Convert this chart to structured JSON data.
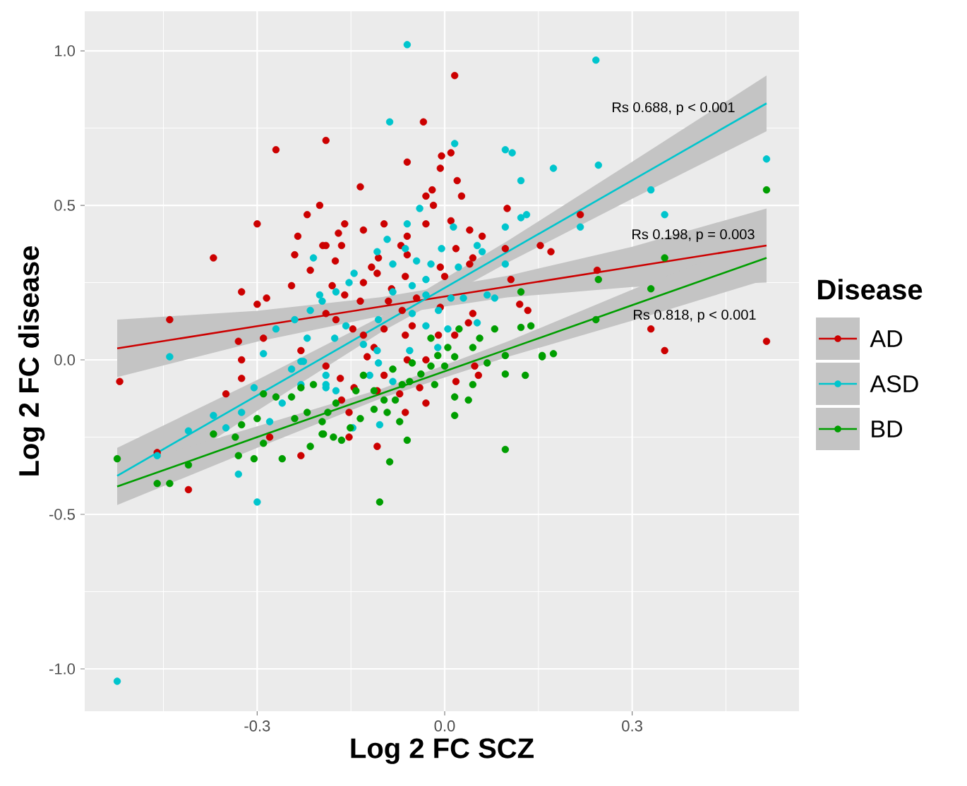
{
  "chart_data": {
    "type": "scatter",
    "xlabel": "Log 2 FC SCZ",
    "ylabel": "Log 2 FC disease",
    "legend_title": "Disease",
    "legend": "right",
    "grid": true,
    "xlim": [
      -0.576,
      0.567
    ],
    "ylim": [
      -1.137,
      1.128
    ],
    "xticks": [
      {
        "value": -0.3,
        "label": "-0.3"
      },
      {
        "value": 0,
        "label": "0.0"
      },
      {
        "value": 0.3,
        "label": "0.3"
      }
    ],
    "yticks": [
      {
        "value": -1,
        "label": "-1.0"
      },
      {
        "value": -0.5,
        "label": "-0.5"
      },
      {
        "value": 0,
        "label": "0.0"
      },
      {
        "value": 0.5,
        "label": "0.5"
      },
      {
        "value": 1,
        "label": "1.0"
      }
    ],
    "annotations": [
      "Rs 0.688, p < 0.001",
      "Rs 0.198, p = 0.003",
      "Rs 0.818, p < 0.001"
    ],
    "series": [
      {
        "name": "AD",
        "color": "#cc0000",
        "marker": "circle",
        "x": [
          -0.27,
          -0.19,
          -0.2,
          -0.22,
          -0.3,
          -0.235,
          -0.37,
          -0.24,
          -0.215,
          -0.245,
          -0.325,
          -0.285,
          -0.44,
          -0.3,
          -0.33,
          -0.29,
          -0.325,
          -0.23,
          -0.195,
          -0.52,
          -0.325,
          -0.35,
          -0.41,
          -0.23,
          -0.28,
          -0.46,
          0.016,
          -0.034,
          -0.06,
          -0.005,
          0.01,
          -0.007,
          0.02,
          -0.135,
          0.027,
          -0.02,
          -0.03,
          -0.018,
          -0.03,
          0.01,
          0.04,
          0.1,
          -0.16,
          -0.13,
          -0.097,
          -0.17,
          -0.19,
          -0.165,
          -0.06,
          -0.07,
          -0.175,
          -0.106,
          -0.06,
          0.018,
          -0.007,
          0.045,
          0.097,
          0.153,
          0.17,
          -0.117,
          -0.13,
          -0.108,
          -0.18,
          -0.16,
          -0.085,
          -0.063,
          0.0,
          0.04,
          0.106,
          0.12,
          0.133,
          -0.045,
          -0.09,
          -0.135,
          -0.068,
          -0.007,
          0.045,
          0.038,
          0.016,
          -0.01,
          -0.052,
          -0.063,
          -0.097,
          -0.13,
          -0.113,
          -0.147,
          -0.174,
          -0.19,
          0.06,
          -0.19,
          -0.167,
          -0.145,
          -0.108,
          -0.165,
          -0.153,
          -0.153,
          -0.108,
          -0.072,
          -0.063,
          -0.04,
          -0.03,
          0.018,
          0.048,
          0.054,
          -0.097,
          -0.124,
          -0.06,
          -0.03,
          0.217,
          0.244,
          0.33,
          0.352,
          0.515
        ],
        "values": [
          0.68,
          0.71,
          0.5,
          0.47,
          0.44,
          0.4,
          0.33,
          0.34,
          0.29,
          0.24,
          0.22,
          0.2,
          0.13,
          0.18,
          0.06,
          0.07,
          0.0,
          0.03,
          0.37,
          -0.07,
          -0.06,
          -0.11,
          -0.42,
          -0.31,
          -0.25,
          -0.3,
          0.92,
          0.77,
          0.64,
          0.66,
          0.67,
          0.62,
          0.58,
          0.56,
          0.53,
          0.55,
          0.53,
          0.5,
          0.44,
          0.45,
          0.42,
          0.49,
          0.44,
          0.42,
          0.44,
          0.41,
          0.37,
          0.37,
          0.4,
          0.37,
          0.32,
          0.33,
          0.34,
          0.36,
          0.3,
          0.33,
          0.36,
          0.37,
          0.35,
          0.3,
          0.25,
          0.28,
          0.24,
          0.21,
          0.23,
          0.27,
          0.27,
          0.31,
          0.26,
          0.18,
          0.16,
          0.2,
          0.19,
          0.19,
          0.16,
          0.17,
          0.15,
          0.12,
          0.08,
          0.08,
          0.11,
          0.08,
          0.1,
          0.08,
          0.04,
          0.1,
          0.13,
          0.15,
          0.4,
          -0.02,
          -0.06,
          -0.09,
          -0.1,
          -0.13,
          -0.17,
          -0.25,
          -0.28,
          -0.11,
          -0.17,
          -0.09,
          -0.14,
          -0.07,
          -0.02,
          -0.05,
          -0.05,
          0.01,
          0.0,
          0.0,
          0.47,
          0.29,
          0.1,
          0.03,
          0.06
        ]
      },
      {
        "name": "ASD",
        "color": "#00c5cd",
        "marker": "circle",
        "x": [
          -0.06,
          -0.088,
          0.016,
          0.097,
          0.108,
          0.174,
          0.122,
          -0.04,
          0.097,
          0.122,
          0.131,
          0.014,
          -0.06,
          -0.092,
          -0.063,
          -0.005,
          0.052,
          0.06,
          -0.108,
          -0.045,
          -0.022,
          -0.145,
          -0.083,
          -0.153,
          -0.03,
          0.022,
          0.097,
          0.068,
          0.08,
          0.03,
          0.01,
          -0.03,
          -0.052,
          -0.196,
          -0.174,
          -0.083,
          -0.01,
          -0.03,
          -0.052,
          0.005,
          0.052,
          -0.106,
          -0.158,
          -0.176,
          -0.108,
          -0.056,
          -0.011,
          -0.13,
          -0.21,
          -0.2,
          -0.215,
          -0.27,
          -0.29,
          -0.44,
          -0.24,
          -0.22,
          -0.23,
          -0.524,
          -0.3,
          -0.33,
          -0.35,
          -0.46,
          -0.41,
          -0.37,
          -0.325,
          -0.305,
          -0.28,
          -0.26,
          -0.245,
          -0.23,
          -0.19,
          -0.226,
          -0.19,
          -0.174,
          -0.19,
          -0.147,
          -0.104,
          -0.106,
          -0.083,
          -0.12,
          0.242,
          0.246,
          0.33,
          0.352,
          0.217,
          0.515
        ],
        "values": [
          1.02,
          0.77,
          0.7,
          0.68,
          0.67,
          0.62,
          0.58,
          0.49,
          0.43,
          0.46,
          0.47,
          0.43,
          0.44,
          0.39,
          0.36,
          0.36,
          0.37,
          0.35,
          0.35,
          0.32,
          0.31,
          0.28,
          0.31,
          0.25,
          0.26,
          0.3,
          0.31,
          0.21,
          0.2,
          0.2,
          0.2,
          0.21,
          0.24,
          0.19,
          0.22,
          0.22,
          0.16,
          0.11,
          0.15,
          0.1,
          0.12,
          0.13,
          0.11,
          0.07,
          0.03,
          0.03,
          0.04,
          0.05,
          0.33,
          0.21,
          0.16,
          0.1,
          0.02,
          0.01,
          0.13,
          0.07,
          -0.005,
          -1.04,
          -0.46,
          -0.37,
          -0.22,
          -0.31,
          -0.23,
          -0.18,
          -0.17,
          -0.09,
          -0.2,
          -0.14,
          -0.03,
          -0.08,
          -0.09,
          -0.005,
          -0.05,
          -0.1,
          -0.08,
          -0.22,
          -0.21,
          -0.01,
          -0.07,
          -0.05,
          0.97,
          0.63,
          0.55,
          0.47,
          0.43,
          0.65
        ]
      },
      {
        "name": "BD",
        "color": "#009e00",
        "marker": "circle",
        "x": [
          0.515,
          0.352,
          0.246,
          0.33,
          0.242,
          0.174,
          0.122,
          0.08,
          0.122,
          0.138,
          0.156,
          0.056,
          0.023,
          -0.022,
          0.005,
          0.045,
          0.097,
          0.156,
          0.097,
          0.129,
          0.038,
          0.016,
          0.016,
          0.097,
          -0.06,
          -0.088,
          -0.104,
          -0.072,
          -0.194,
          -0.178,
          -0.165,
          -0.151,
          -0.135,
          -0.113,
          -0.092,
          -0.079,
          -0.056,
          -0.038,
          -0.016,
          0.0,
          0.016,
          -0.011,
          -0.052,
          -0.083,
          -0.13,
          -0.142,
          -0.174,
          -0.187,
          -0.113,
          -0.097,
          -0.068,
          -0.022,
          0.045,
          0.068,
          -0.524,
          -0.46,
          -0.44,
          -0.41,
          -0.37,
          -0.33,
          -0.305,
          -0.335,
          -0.325,
          -0.3,
          -0.29,
          -0.26,
          -0.215,
          -0.27,
          -0.245,
          -0.23,
          -0.21,
          -0.24,
          -0.22,
          -0.196,
          -0.29,
          -0.196
        ],
        "values": [
          0.55,
          0.33,
          0.26,
          0.23,
          0.13,
          0.02,
          0.22,
          0.1,
          0.105,
          0.11,
          0.014,
          0.07,
          0.1,
          0.07,
          0.04,
          0.04,
          0.014,
          0.01,
          -0.046,
          -0.05,
          -0.13,
          -0.12,
          -0.18,
          -0.29,
          -0.26,
          -0.33,
          -0.46,
          -0.2,
          -0.24,
          -0.25,
          -0.26,
          -0.22,
          -0.19,
          -0.16,
          -0.17,
          -0.13,
          -0.07,
          -0.046,
          -0.08,
          -0.02,
          0.01,
          0.014,
          -0.01,
          -0.03,
          -0.05,
          -0.1,
          -0.14,
          -0.17,
          -0.1,
          -0.13,
          -0.08,
          -0.02,
          -0.08,
          -0.01,
          -0.32,
          -0.4,
          -0.4,
          -0.34,
          -0.24,
          -0.31,
          -0.32,
          -0.25,
          -0.21,
          -0.19,
          -0.27,
          -0.32,
          -0.28,
          -0.12,
          -0.12,
          -0.09,
          -0.08,
          -0.19,
          -0.17,
          -0.2,
          -0.11,
          -0.24
        ]
      },
      {
        "type": "line",
        "color": "#cc0000",
        "x": [
          -0.524,
          -0.3,
          -0.1,
          0.1,
          0.3,
          0.515
        ],
        "values": [
          0.037,
          0.109,
          0.173,
          0.237,
          0.301,
          0.37
        ],
        "lower": [
          -0.056,
          0.059,
          0.143,
          0.202,
          0.236,
          0.25
        ],
        "upper": [
          0.13,
          0.159,
          0.203,
          0.272,
          0.366,
          0.49
        ]
      },
      {
        "type": "line",
        "color": "#00c5cd",
        "x": [
          -0.524,
          -0.3,
          -0.1,
          0.1,
          0.3,
          0.515
        ],
        "values": [
          -0.375,
          -0.115,
          0.117,
          0.349,
          0.581,
          0.83
        ],
        "lower": [
          -0.465,
          -0.165,
          0.092,
          0.314,
          0.521,
          0.74
        ],
        "upper": [
          -0.285,
          -0.065,
          0.142,
          0.384,
          0.641,
          0.92
        ]
      },
      {
        "type": "line",
        "color": "#009e00",
        "x": [
          -0.524,
          -0.3,
          -0.1,
          0.1,
          0.3,
          0.515
        ],
        "values": [
          -0.41,
          -0.25,
          -0.108,
          0.034,
          0.177,
          0.33
        ],
        "lower": [
          -0.47,
          -0.285,
          -0.123,
          0.009,
          0.127,
          0.26
        ],
        "upper": [
          -0.35,
          -0.215,
          -0.093,
          0.059,
          0.227,
          0.4
        ]
      }
    ]
  }
}
